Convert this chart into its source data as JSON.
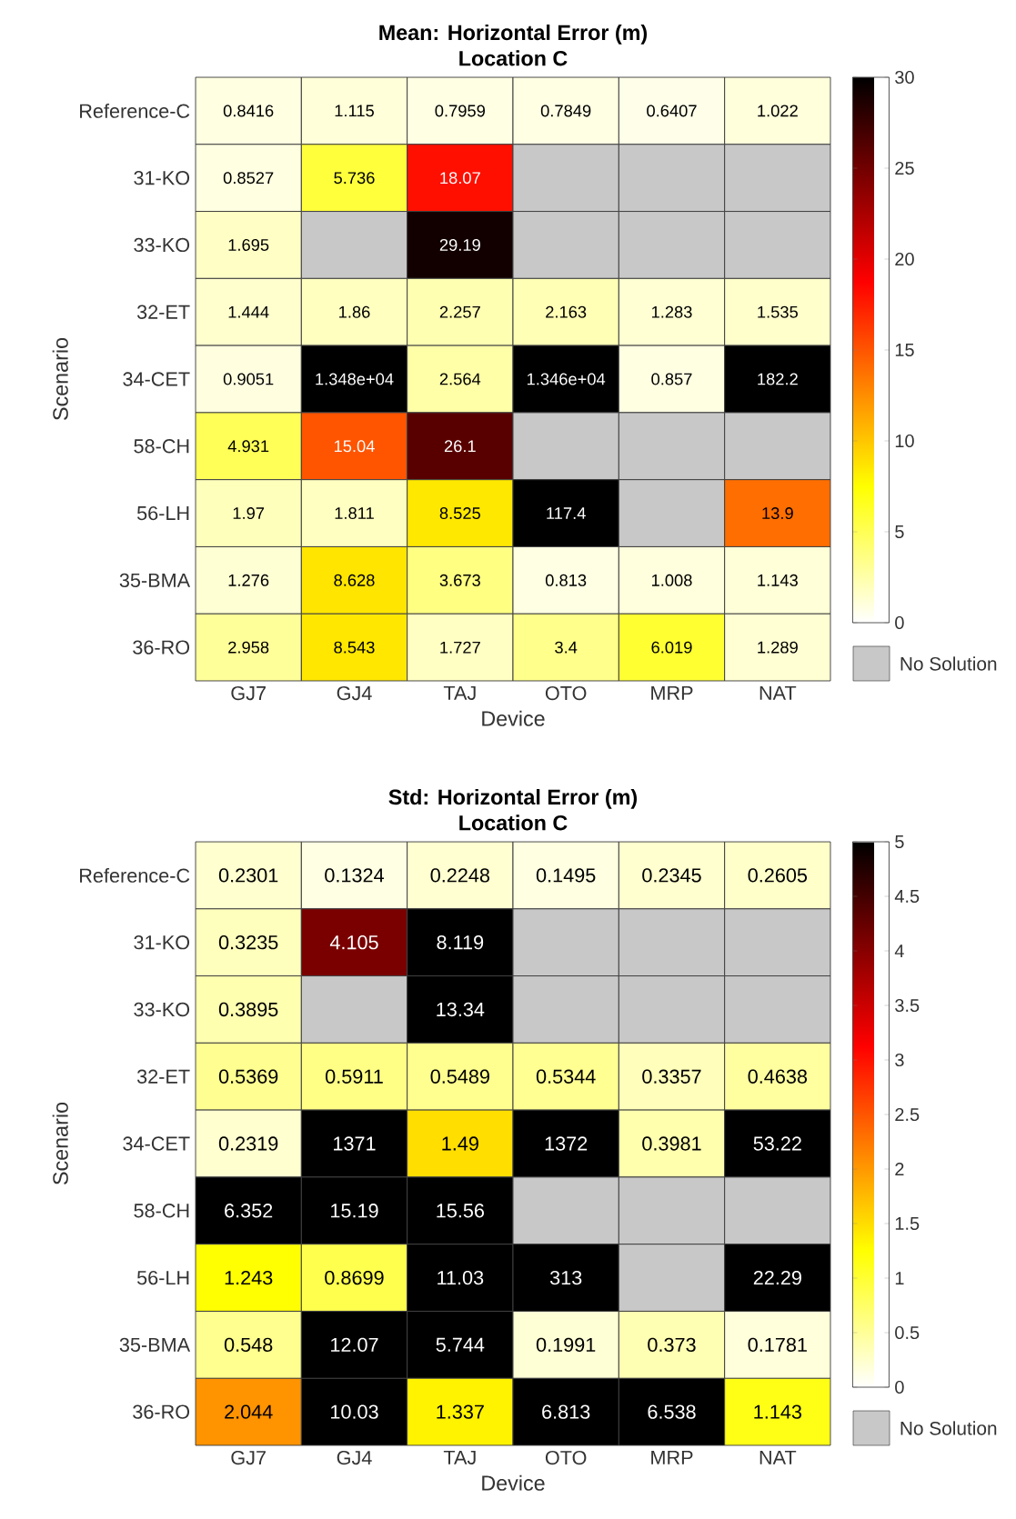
{
  "chart_data": [
    {
      "type": "heatmap",
      "title": "Mean: Horizontal Error (m)",
      "subtitle": "Location C",
      "xlabel": "Device",
      "ylabel": "Scenario",
      "categories": [
        "GJ7",
        "GJ4",
        "TAJ",
        "OTO",
        "MRP",
        "NAT"
      ],
      "y_categories": [
        "Reference-C",
        "31-KO",
        "33-KO",
        "32-ET",
        "34-CET",
        "58-CH",
        "56-LH",
        "35-BMA",
        "36-RO"
      ],
      "cells": [
        [
          0.8416,
          1.115,
          0.7959,
          0.7849,
          0.6407,
          1.022
        ],
        [
          0.8527,
          5.736,
          18.07,
          null,
          null,
          null
        ],
        [
          1.695,
          null,
          29.19,
          null,
          null,
          null
        ],
        [
          1.444,
          1.86,
          2.257,
          2.163,
          1.283,
          1.535
        ],
        [
          0.9051,
          13480,
          2.564,
          13460,
          0.857,
          182.2
        ],
        [
          4.931,
          15.04,
          26.1,
          null,
          null,
          null
        ],
        [
          1.97,
          1.811,
          8.525,
          117.4,
          null,
          13.9
        ],
        [
          1.276,
          8.628,
          3.673,
          0.813,
          1.008,
          1.143
        ],
        [
          2.958,
          8.543,
          1.727,
          3.4,
          6.019,
          1.289
        ]
      ],
      "cell_labels": [
        [
          "0.8416",
          "1.115",
          "0.7959",
          "0.7849",
          "0.6407",
          "1.022"
        ],
        [
          "0.8527",
          "5.736",
          "18.07",
          null,
          null,
          null
        ],
        [
          "1.695",
          null,
          "29.19",
          null,
          null,
          null
        ],
        [
          "1.444",
          "1.86",
          "2.257",
          "2.163",
          "1.283",
          "1.535"
        ],
        [
          "0.9051",
          "1.348e+04",
          "2.564",
          "1.346e+04",
          "0.857",
          "182.2"
        ],
        [
          "4.931",
          "15.04",
          "26.1",
          null,
          null,
          null
        ],
        [
          "1.97",
          "1.811",
          "8.525",
          "117.4",
          null,
          "13.9"
        ],
        [
          "1.276",
          "8.628",
          "3.673",
          "0.813",
          "1.008",
          "1.143"
        ],
        [
          "2.958",
          "8.543",
          "1.727",
          "3.4",
          "6.019",
          "1.289"
        ]
      ],
      "clim": [
        0,
        30
      ],
      "cticks": [
        0,
        5,
        10,
        15,
        20,
        25,
        30
      ],
      "annotations": [
        "No Solution"
      ]
    },
    {
      "type": "heatmap",
      "title": "Std: Horizontal Error (m)",
      "subtitle": "Location C",
      "xlabel": "Device",
      "ylabel": "Scenario",
      "categories": [
        "GJ7",
        "GJ4",
        "TAJ",
        "OTO",
        "MRP",
        "NAT"
      ],
      "y_categories": [
        "Reference-C",
        "31-KO",
        "33-KO",
        "32-ET",
        "34-CET",
        "58-CH",
        "56-LH",
        "35-BMA",
        "36-RO"
      ],
      "cells": [
        [
          0.2301,
          0.1324,
          0.2248,
          0.1495,
          0.2345,
          0.2605
        ],
        [
          0.3235,
          4.105,
          8.119,
          null,
          null,
          null
        ],
        [
          0.3895,
          null,
          13.34,
          null,
          null,
          null
        ],
        [
          0.5369,
          0.5911,
          0.5489,
          0.5344,
          0.3357,
          0.4638
        ],
        [
          0.2319,
          1371,
          1.49,
          1372,
          0.3981,
          53.22
        ],
        [
          6.352,
          15.19,
          15.56,
          null,
          null,
          null
        ],
        [
          1.243,
          0.8699,
          11.03,
          313,
          null,
          22.29
        ],
        [
          0.548,
          12.07,
          5.744,
          0.1991,
          0.373,
          0.1781
        ],
        [
          2.044,
          10.03,
          1.337,
          6.813,
          6.538,
          1.143
        ]
      ],
      "cell_labels": [
        [
          "0.2301",
          "0.1324",
          "0.2248",
          "0.1495",
          "0.2345",
          "0.2605"
        ],
        [
          "0.3235",
          "4.105",
          "8.119",
          null,
          null,
          null
        ],
        [
          "0.3895",
          null,
          "13.34",
          null,
          null,
          null
        ],
        [
          "0.5369",
          "0.5911",
          "0.5489",
          "0.5344",
          "0.3357",
          "0.4638"
        ],
        [
          "0.2319",
          "1371",
          "1.49",
          "1372",
          "0.3981",
          "53.22"
        ],
        [
          "6.352",
          "15.19",
          "15.56",
          null,
          null,
          null
        ],
        [
          "1.243",
          "0.8699",
          "11.03",
          "313",
          null,
          "22.29"
        ],
        [
          "0.548",
          "12.07",
          "5.744",
          "0.1991",
          "0.373",
          "0.1781"
        ],
        [
          "2.044",
          "10.03",
          "1.337",
          "6.813",
          "6.538",
          "1.143"
        ]
      ],
      "clim": [
        0,
        5
      ],
      "cticks": [
        0,
        0.5,
        1,
        1.5,
        2,
        2.5,
        3,
        3.5,
        4,
        4.5,
        5
      ],
      "annotations": [
        "No Solution"
      ]
    }
  ]
}
